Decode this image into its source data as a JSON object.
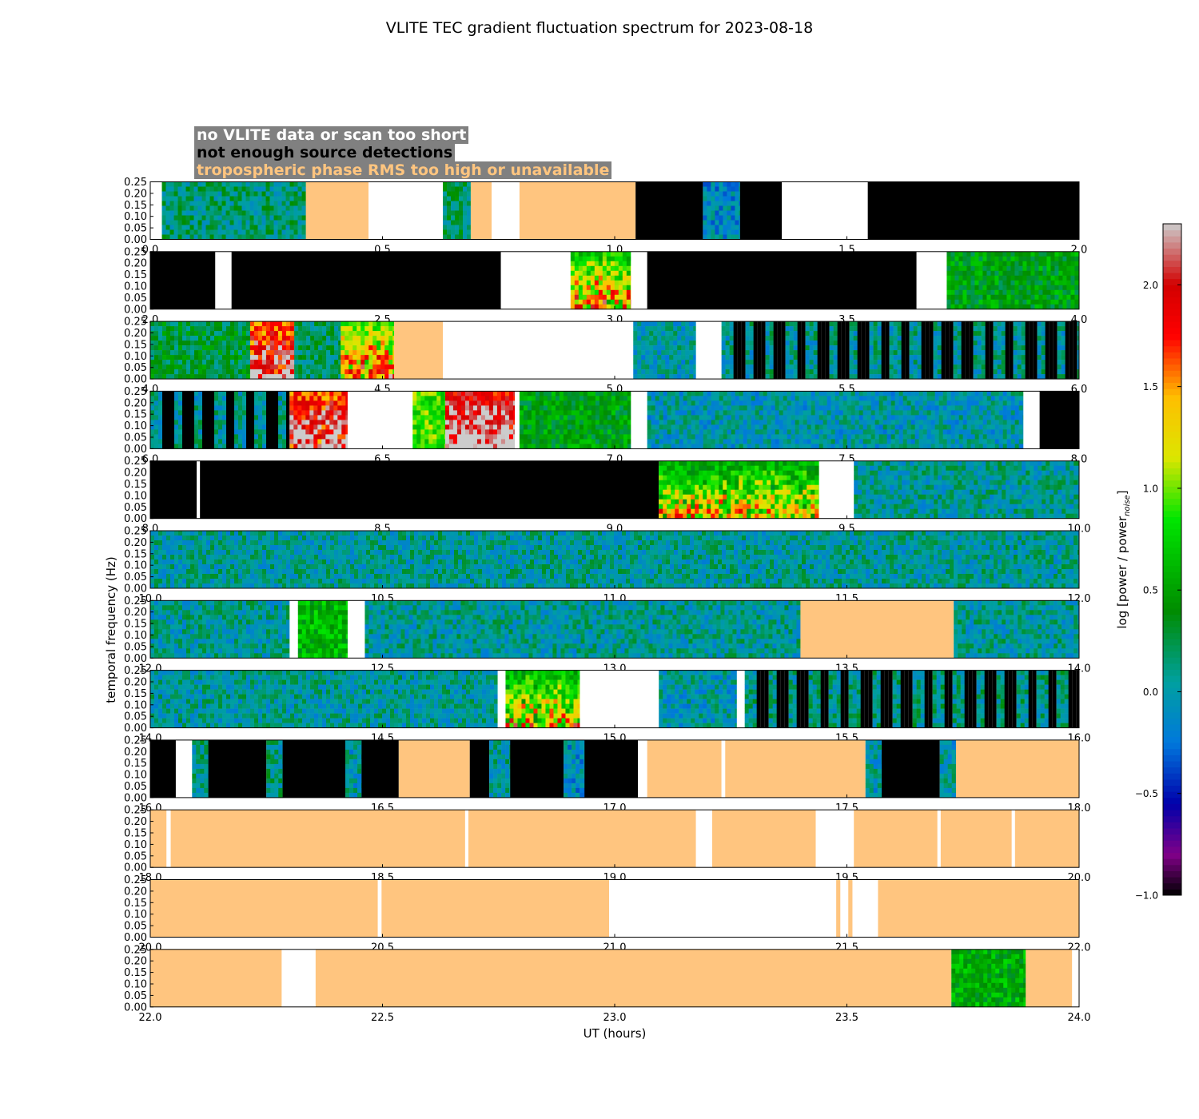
{
  "title": "VLITE TEC gradient fluctuation spectrum for 2023-08-18",
  "legend": {
    "no_data": "no VLITE data or scan too short",
    "few_sources": "not enough source detections",
    "tropo": "tropospheric phase RMS too high or unavailable"
  },
  "colors": {
    "no_data": "#ffffff",
    "few_sources": "#000000",
    "tropo": "#ffc57f",
    "legend_box": "#808080"
  },
  "chart_data": {
    "type": "heatmap",
    "title": "VLITE TEC gradient fluctuation spectrum for 2023-08-18",
    "xlabel": "UT (hours)",
    "ylabel": "temporal frequency (Hz)",
    "ylim": [
      0,
      0.25
    ],
    "yticks": [
      "0.00",
      "0.05",
      "0.10",
      "0.15",
      "0.20",
      "0.25"
    ],
    "colorbar": {
      "label": "log [power / power",
      "label_sub": "noise",
      "label_end": "]",
      "range": [
        -1.0,
        2.3
      ],
      "ticks": [
        "-1.0",
        "-0.5",
        "0.0",
        "0.5",
        "1.0",
        "1.5",
        "2.0"
      ],
      "colormap": "spectral"
    },
    "panels": [
      {
        "xlim": [
          0,
          2
        ],
        "xticks": [
          "0.0",
          "0.5",
          "1.0",
          "1.5",
          "2.0"
        ],
        "segments": [
          {
            "start": 0.0,
            "end": 0.025,
            "type": "nodata"
          },
          {
            "start": 0.025,
            "end": 0.335,
            "type": "data",
            "level": 0.15
          },
          {
            "start": 0.335,
            "end": 0.47,
            "type": "tropo"
          },
          {
            "start": 0.47,
            "end": 0.63,
            "type": "nodata"
          },
          {
            "start": 0.63,
            "end": 0.69,
            "type": "data",
            "level": 0.2
          },
          {
            "start": 0.69,
            "end": 0.735,
            "type": "tropo"
          },
          {
            "start": 0.735,
            "end": 0.795,
            "type": "nodata"
          },
          {
            "start": 0.795,
            "end": 1.045,
            "type": "tropo"
          },
          {
            "start": 1.045,
            "end": 1.19,
            "type": "fewsrc"
          },
          {
            "start": 1.19,
            "end": 1.27,
            "type": "data",
            "level": -0.1
          },
          {
            "start": 1.27,
            "end": 1.36,
            "type": "fewsrc"
          },
          {
            "start": 1.36,
            "end": 1.545,
            "type": "nodata"
          },
          {
            "start": 1.545,
            "end": 2.0,
            "type": "fewsrc"
          }
        ]
      },
      {
        "xlim": [
          2,
          4
        ],
        "xticks": [
          "2.0",
          "2.5",
          "3.0",
          "3.5",
          "4.0"
        ],
        "segments": [
          {
            "start": 2.0,
            "end": 2.14,
            "type": "fewsrc"
          },
          {
            "start": 2.14,
            "end": 2.175,
            "type": "nodata"
          },
          {
            "start": 2.175,
            "end": 2.755,
            "type": "fewsrc"
          },
          {
            "start": 2.755,
            "end": 2.905,
            "type": "nodata"
          },
          {
            "start": 2.905,
            "end": 3.035,
            "type": "data",
            "level": 0.9,
            "hot": true
          },
          {
            "start": 3.035,
            "end": 3.07,
            "type": "nodata"
          },
          {
            "start": 3.07,
            "end": 3.65,
            "type": "fewsrc"
          },
          {
            "start": 3.65,
            "end": 3.715,
            "type": "nodata"
          },
          {
            "start": 3.715,
            "end": 4.0,
            "type": "data",
            "level": 0.45
          }
        ]
      },
      {
        "xlim": [
          4,
          6
        ],
        "xticks": [
          "4.0",
          "4.5",
          "5.0",
          "5.5",
          "6.0"
        ],
        "segments": [
          {
            "start": 4.0,
            "end": 4.215,
            "type": "data",
            "level": 0.3
          },
          {
            "start": 4.215,
            "end": 4.31,
            "type": "data",
            "level": 1.7,
            "hot": true
          },
          {
            "start": 4.31,
            "end": 4.41,
            "type": "data",
            "level": 0.2
          },
          {
            "start": 4.41,
            "end": 4.525,
            "type": "data",
            "level": 1.1,
            "hot": true
          },
          {
            "start": 4.525,
            "end": 4.63,
            "type": "tropo"
          },
          {
            "start": 4.63,
            "end": 5.04,
            "type": "nodata"
          },
          {
            "start": 5.04,
            "end": 5.175,
            "type": "data",
            "level": 0.0
          },
          {
            "start": 5.175,
            "end": 5.23,
            "type": "nodata"
          },
          {
            "start": 5.23,
            "end": 6.0,
            "type": "striped",
            "level": 0.05
          }
        ]
      },
      {
        "xlim": [
          6,
          8
        ],
        "xticks": [
          "6.0",
          "6.5",
          "7.0",
          "7.5",
          "8.0"
        ],
        "segments": [
          {
            "start": 6.0,
            "end": 6.3,
            "type": "striped",
            "level": 0.05
          },
          {
            "start": 6.3,
            "end": 6.425,
            "type": "data",
            "level": 1.8,
            "hot": true
          },
          {
            "start": 6.425,
            "end": 6.565,
            "type": "nodata"
          },
          {
            "start": 6.565,
            "end": 6.635,
            "type": "data",
            "level": 0.9
          },
          {
            "start": 6.635,
            "end": 6.785,
            "type": "data",
            "level": 2.0,
            "hot": true
          },
          {
            "start": 6.785,
            "end": 6.795,
            "type": "nodata"
          },
          {
            "start": 6.795,
            "end": 7.035,
            "type": "data",
            "level": 0.45
          },
          {
            "start": 7.035,
            "end": 7.07,
            "type": "nodata"
          },
          {
            "start": 7.07,
            "end": 7.88,
            "type": "data",
            "level": 0.0
          },
          {
            "start": 7.88,
            "end": 7.915,
            "type": "nodata"
          },
          {
            "start": 7.915,
            "end": 8.0,
            "type": "fewsrc"
          }
        ]
      },
      {
        "xlim": [
          8,
          10
        ],
        "xticks": [
          "8.0",
          "8.5",
          "9.0",
          "9.5",
          "10.0"
        ],
        "segments": [
          {
            "start": 8.0,
            "end": 8.1,
            "type": "fewsrc"
          },
          {
            "start": 8.1,
            "end": 8.107,
            "type": "nodata"
          },
          {
            "start": 8.107,
            "end": 9.095,
            "type": "fewsrc"
          },
          {
            "start": 9.095,
            "end": 9.44,
            "type": "data",
            "level": 0.7,
            "hot": true
          },
          {
            "start": 9.44,
            "end": 9.515,
            "type": "nodata"
          },
          {
            "start": 9.515,
            "end": 10.0,
            "type": "data",
            "level": 0.05
          }
        ]
      },
      {
        "xlim": [
          10,
          12
        ],
        "xticks": [
          "10.0",
          "10.5",
          "11.0",
          "11.5",
          "12.0"
        ],
        "segments": [
          {
            "start": 10.0,
            "end": 12.0,
            "type": "data",
            "level": 0.05
          }
        ]
      },
      {
        "xlim": [
          12,
          14
        ],
        "xticks": [
          "12.0",
          "12.5",
          "13.0",
          "13.5",
          "14.0"
        ],
        "segments": [
          {
            "start": 12.0,
            "end": 12.3,
            "type": "data",
            "level": 0.05
          },
          {
            "start": 12.3,
            "end": 12.318,
            "type": "nodata"
          },
          {
            "start": 12.318,
            "end": 12.425,
            "type": "data",
            "level": 0.6
          },
          {
            "start": 12.425,
            "end": 12.462,
            "type": "nodata"
          },
          {
            "start": 12.462,
            "end": 13.4,
            "type": "data",
            "level": 0.05
          },
          {
            "start": 13.4,
            "end": 13.73,
            "type": "tropo"
          },
          {
            "start": 13.73,
            "end": 14.0,
            "type": "data",
            "level": 0.05
          }
        ]
      },
      {
        "xlim": [
          14,
          16
        ],
        "xticks": [
          "14.0",
          "14.5",
          "15.0",
          "15.5",
          "16.0"
        ],
        "segments": [
          {
            "start": 14.0,
            "end": 14.748,
            "type": "data",
            "level": 0.05
          },
          {
            "start": 14.748,
            "end": 14.765,
            "type": "nodata"
          },
          {
            "start": 14.765,
            "end": 14.925,
            "type": "data",
            "level": 0.75,
            "hot": true
          },
          {
            "start": 14.925,
            "end": 15.095,
            "type": "nodata"
          },
          {
            "start": 15.095,
            "end": 15.263,
            "type": "data",
            "level": 0.0
          },
          {
            "start": 15.263,
            "end": 15.28,
            "type": "nodata"
          },
          {
            "start": 15.28,
            "end": 16.0,
            "type": "striped",
            "level": 0.1
          }
        ]
      },
      {
        "xlim": [
          16,
          18
        ],
        "xticks": [
          "16.0",
          "16.5",
          "17.0",
          "17.5",
          "18.0"
        ],
        "segments": [
          {
            "start": 16.0,
            "end": 16.055,
            "type": "fewsrc"
          },
          {
            "start": 16.055,
            "end": 16.09,
            "type": "nodata"
          },
          {
            "start": 16.09,
            "end": 16.125,
            "type": "data",
            "level": 0.1
          },
          {
            "start": 16.125,
            "end": 16.25,
            "type": "fewsrc"
          },
          {
            "start": 16.25,
            "end": 16.285,
            "type": "data",
            "level": 0.1
          },
          {
            "start": 16.285,
            "end": 16.42,
            "type": "fewsrc"
          },
          {
            "start": 16.42,
            "end": 16.455,
            "type": "data",
            "level": 0.0
          },
          {
            "start": 16.455,
            "end": 16.535,
            "type": "fewsrc"
          },
          {
            "start": 16.535,
            "end": 16.688,
            "type": "tropo"
          },
          {
            "start": 16.688,
            "end": 16.73,
            "type": "fewsrc"
          },
          {
            "start": 16.73,
            "end": 16.775,
            "type": "data",
            "level": 0.05
          },
          {
            "start": 16.775,
            "end": 16.89,
            "type": "fewsrc"
          },
          {
            "start": 16.89,
            "end": 16.935,
            "type": "data",
            "level": -0.1
          },
          {
            "start": 16.935,
            "end": 17.05,
            "type": "fewsrc"
          },
          {
            "start": 17.05,
            "end": 17.07,
            "type": "nodata"
          },
          {
            "start": 17.07,
            "end": 17.23,
            "type": "tropo"
          },
          {
            "start": 17.23,
            "end": 17.238,
            "type": "nodata"
          },
          {
            "start": 17.238,
            "end": 17.54,
            "type": "tropo"
          },
          {
            "start": 17.54,
            "end": 17.575,
            "type": "data",
            "level": 0.0
          },
          {
            "start": 17.575,
            "end": 17.7,
            "type": "fewsrc"
          },
          {
            "start": 17.7,
            "end": 17.735,
            "type": "data",
            "level": 0.0
          },
          {
            "start": 17.735,
            "end": 18.0,
            "type": "tropo"
          }
        ]
      },
      {
        "xlim": [
          18,
          20
        ],
        "xticks": [
          "18.0",
          "18.5",
          "19.0",
          "19.5",
          "20.0"
        ],
        "segments": [
          {
            "start": 18.0,
            "end": 18.035,
            "type": "tropo"
          },
          {
            "start": 18.035,
            "end": 18.044,
            "type": "nodata"
          },
          {
            "start": 18.044,
            "end": 18.678,
            "type": "tropo"
          },
          {
            "start": 18.678,
            "end": 18.685,
            "type": "nodata"
          },
          {
            "start": 18.685,
            "end": 19.175,
            "type": "tropo"
          },
          {
            "start": 19.175,
            "end": 19.21,
            "type": "nodata"
          },
          {
            "start": 19.21,
            "end": 19.433,
            "type": "tropo"
          },
          {
            "start": 19.433,
            "end": 19.515,
            "type": "nodata"
          },
          {
            "start": 19.515,
            "end": 19.695,
            "type": "tropo"
          },
          {
            "start": 19.695,
            "end": 19.702,
            "type": "nodata"
          },
          {
            "start": 19.702,
            "end": 19.855,
            "type": "tropo"
          },
          {
            "start": 19.855,
            "end": 19.862,
            "type": "nodata"
          },
          {
            "start": 19.862,
            "end": 20.0,
            "type": "tropo"
          }
        ]
      },
      {
        "xlim": [
          20,
          22
        ],
        "xticks": [
          "20.0",
          "20.5",
          "21.0",
          "21.5",
          "22.0"
        ],
        "segments": [
          {
            "start": 20.0,
            "end": 20.49,
            "type": "tropo"
          },
          {
            "start": 20.49,
            "end": 20.498,
            "type": "nodata"
          },
          {
            "start": 20.498,
            "end": 20.988,
            "type": "tropo"
          },
          {
            "start": 20.988,
            "end": 21.477,
            "type": "nodata"
          },
          {
            "start": 21.477,
            "end": 21.486,
            "type": "tropo"
          },
          {
            "start": 21.486,
            "end": 21.503,
            "type": "nodata"
          },
          {
            "start": 21.503,
            "end": 21.512,
            "type": "tropo"
          },
          {
            "start": 21.512,
            "end": 21.567,
            "type": "nodata"
          },
          {
            "start": 21.567,
            "end": 22.0,
            "type": "tropo"
          }
        ]
      },
      {
        "xlim": [
          22,
          24
        ],
        "xticks": [
          "22.0",
          "22.5",
          "23.0",
          "23.5",
          "24.0"
        ],
        "segments": [
          {
            "start": 22.0,
            "end": 22.283,
            "type": "tropo"
          },
          {
            "start": 22.283,
            "end": 22.356,
            "type": "nodata"
          },
          {
            "start": 22.356,
            "end": 23.725,
            "type": "tropo"
          },
          {
            "start": 23.725,
            "end": 23.885,
            "type": "data",
            "level": 0.55
          },
          {
            "start": 23.885,
            "end": 23.985,
            "type": "tropo"
          },
          {
            "start": 23.985,
            "end": 24.0,
            "type": "nodata"
          }
        ]
      }
    ]
  }
}
